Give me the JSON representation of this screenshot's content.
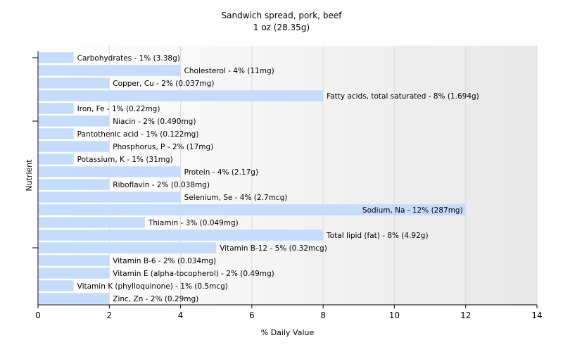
{
  "chart_data": {
    "type": "bar",
    "orientation": "horizontal",
    "title": "Sandwich spread, pork, beef",
    "subtitle": "1 oz (28.35g)",
    "xlabel": "% Daily Value",
    "ylabel": "Nutrient",
    "xlim": [
      0,
      14
    ],
    "xticks": [
      0,
      2,
      4,
      6,
      8,
      10,
      12,
      14
    ],
    "grid": true,
    "bar_color": "#c6dcfb",
    "categories": [
      "Carbohydrates",
      "Cholesterol",
      "Copper, Cu",
      "Fatty acids, total saturated",
      "Iron, Fe",
      "Niacin",
      "Pantothenic acid",
      "Phosphorus, P",
      "Potassium, K",
      "Protein",
      "Riboflavin",
      "Selenium, Se",
      "Sodium, Na",
      "Thiamin",
      "Total lipid (fat)",
      "Vitamin B-12",
      "Vitamin B-6",
      "Vitamin E (alpha-tocopherol)",
      "Vitamin K (phylloquinone)",
      "Zinc, Zn"
    ],
    "values": [
      1,
      4,
      2,
      8,
      1,
      2,
      1,
      2,
      1,
      4,
      2,
      4,
      12,
      3,
      8,
      5,
      2,
      2,
      1,
      2
    ],
    "labels": [
      "Carbohydrates - 1% (3.38g)",
      "Cholesterol - 4% (11mg)",
      "Copper, Cu - 2% (0.037mg)",
      "Fatty acids, total saturated - 8% (1.694g)",
      "Iron, Fe - 1% (0.22mg)",
      "Niacin - 2% (0.490mg)",
      "Pantothenic acid - 1% (0.122mg)",
      "Phosphorus, P - 2% (17mg)",
      "Potassium, K - 1% (31mg)",
      "Protein - 4% (2.17g)",
      "Riboflavin - 2% (0.038mg)",
      "Selenium, Se - 4% (2.7mcg)",
      "Sodium, Na - 12% (287mg)",
      "Thiamin - 3% (0.049mg)",
      "Total lipid (fat) - 8% (4.92g)",
      "Vitamin B-12 - 5% (0.32mcg)",
      "Vitamin B-6 - 2% (0.034mg)",
      "Vitamin E (alpha-tocopherol) - 2% (0.49mg)",
      "Vitamin K (phylloquinone) - 1% (0.5mcg)",
      "Zinc, Zn - 2% (0.29mg)"
    ]
  }
}
